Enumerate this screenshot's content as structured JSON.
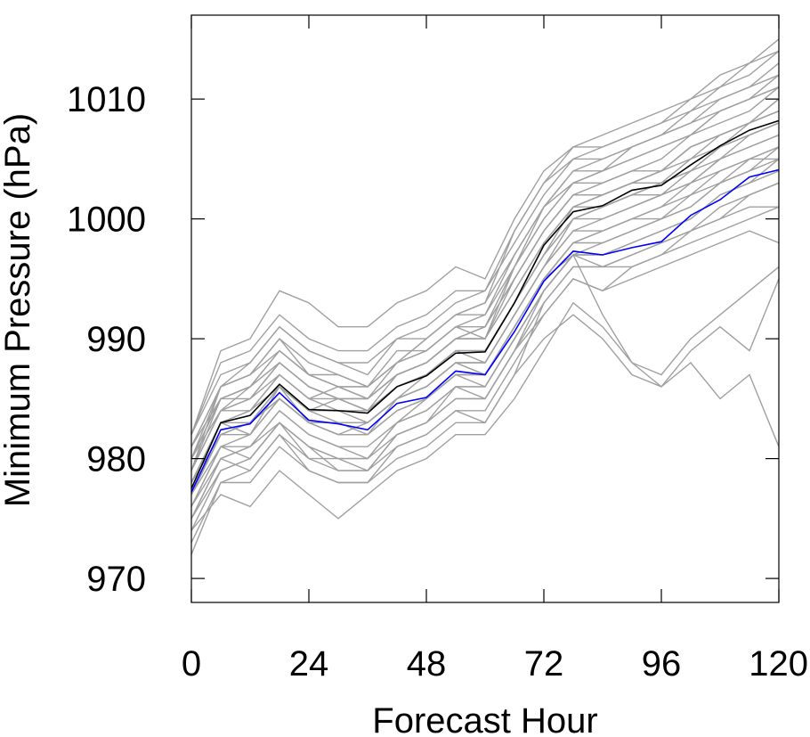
{
  "chart_data": {
    "type": "line",
    "xlabel": "Forecast Hour",
    "ylabel": "Minimum Pressure (hPa)",
    "xlim": [
      0,
      120
    ],
    "ylim": [
      968,
      1017
    ],
    "xticks": [
      0,
      24,
      48,
      72,
      96,
      120
    ],
    "yticks": [
      970,
      980,
      990,
      1000,
      1010
    ],
    "xtick_labels": [
      "0",
      "24",
      "48",
      "72",
      "96",
      "120"
    ],
    "ytick_labels": [
      "970",
      "980",
      "990",
      "1000",
      "1010"
    ],
    "grid": false,
    "legend": "none",
    "x": [
      0,
      6,
      12,
      18,
      24,
      30,
      36,
      42,
      48,
      54,
      60,
      66,
      72,
      78,
      84,
      90,
      96,
      102,
      108,
      114,
      120
    ],
    "series": [
      {
        "role": "ensemble-mean",
        "color": "#000000",
        "values": [
          977.5,
          983.0,
          983.6,
          986.2,
          984.1,
          984.0,
          983.8,
          986.0,
          986.9,
          988.8,
          988.9,
          993.0,
          997.8,
          1000.6,
          1001.1,
          1002.4,
          1002.8,
          1004.5,
          1006.1,
          1007.4,
          1008.2
        ]
      },
      {
        "role": "control",
        "color": "#0000ff",
        "values": [
          977.2,
          982.4,
          982.9,
          985.5,
          983.2,
          982.9,
          982.4,
          984.6,
          985.1,
          987.3,
          987.0,
          990.6,
          994.8,
          997.3,
          997.0,
          997.6,
          998.1,
          1000.3,
          1001.6,
          1003.5,
          1004.1
        ]
      }
    ],
    "member_color": "#a0a0a0",
    "members": [
      [
        981,
        985,
        986,
        988,
        986,
        985,
        985,
        987,
        988,
        990,
        990,
        996,
        1001,
        1003,
        1004,
        1006,
        1007,
        1008,
        1009,
        1010,
        1011
      ],
      [
        975,
        980,
        981,
        983,
        981,
        980,
        980,
        982,
        983,
        986,
        985,
        989,
        993,
        996,
        996,
        997,
        998,
        999,
        1000,
        1001,
        1001
      ],
      [
        979,
        986,
        987,
        990,
        987,
        986,
        986,
        988,
        990,
        992,
        993,
        999,
        1003,
        1005,
        1006,
        1007,
        1008,
        1010,
        1011,
        1013,
        1014
      ],
      [
        973,
        978,
        978,
        981,
        979,
        978,
        978,
        980,
        981,
        983,
        983,
        987,
        990,
        992,
        990,
        987,
        986,
        988,
        985,
        987,
        981
      ],
      [
        978,
        983,
        982,
        986,
        984,
        985,
        984,
        986,
        987,
        989,
        988,
        992,
        996,
        999,
        999,
        1000,
        1001,
        1003,
        1004,
        1005,
        1005
      ],
      [
        982,
        989,
        990,
        994,
        993,
        991,
        991,
        993,
        994,
        996,
        995,
        1000,
        1004,
        1006,
        1007,
        1008,
        1009,
        1010,
        1012,
        1013,
        1015
      ],
      [
        976,
        981,
        980,
        983,
        980,
        979,
        979,
        981,
        982,
        984,
        984,
        988,
        992,
        995,
        994,
        995,
        996,
        997,
        998,
        999,
        998
      ],
      [
        980,
        984,
        985,
        987,
        985,
        986,
        985,
        987,
        988,
        990,
        991,
        995,
        999,
        1002,
        1002,
        1003,
        1004,
        1006,
        1007,
        1008,
        1009
      ],
      [
        977,
        982,
        983,
        985,
        983,
        982,
        983,
        985,
        986,
        988,
        987,
        991,
        995,
        997,
        992,
        988,
        987,
        990,
        992,
        994,
        996
      ],
      [
        974,
        977,
        976,
        979,
        977,
        975,
        977,
        979,
        980,
        982,
        982,
        985,
        989,
        993,
        991,
        988,
        986,
        989,
        991,
        989,
        995
      ],
      [
        979,
        984,
        986,
        988,
        986,
        985,
        984,
        986,
        987,
        989,
        989,
        993,
        997,
        1001,
        1001,
        1002,
        1003,
        1004,
        1006,
        1007,
        1008
      ],
      [
        981,
        986,
        987,
        989,
        987,
        987,
        986,
        989,
        989,
        991,
        992,
        996,
        1000,
        1003,
        1004,
        1005,
        1006,
        1007,
        1009,
        1010,
        1011
      ],
      [
        978,
        982,
        983,
        986,
        983,
        983,
        983,
        985,
        986,
        988,
        988,
        992,
        996,
        1000,
        1000,
        1001,
        1002,
        1003,
        1005,
        1006,
        1007
      ],
      [
        976,
        980,
        979,
        982,
        979,
        978,
        978,
        981,
        982,
        984,
        983,
        987,
        993,
        996,
        996,
        996,
        997,
        999,
        1000,
        1002,
        1003
      ],
      [
        980,
        985,
        986,
        989,
        987,
        986,
        986,
        988,
        989,
        991,
        990,
        995,
        999,
        1002,
        1003,
        1004,
        1004,
        1006,
        1007,
        1008,
        1010
      ],
      [
        978,
        983,
        984,
        986,
        984,
        984,
        983,
        985,
        986,
        988,
        988,
        992,
        996,
        999,
        1000,
        1001,
        1002,
        1003,
        1005,
        1006,
        1007
      ],
      [
        972,
        978,
        979,
        982,
        980,
        980,
        979,
        982,
        983,
        985,
        985,
        989,
        994,
        997,
        997,
        998,
        999,
        1000,
        1002,
        1003,
        1004
      ],
      [
        982,
        987,
        988,
        991,
        989,
        988,
        988,
        990,
        991,
        993,
        994,
        998,
        1002,
        1005,
        1005,
        1006,
        1007,
        1008,
        1010,
        1011,
        1012
      ],
      [
        977,
        981,
        982,
        985,
        983,
        982,
        982,
        984,
        985,
        987,
        987,
        991,
        995,
        998,
        998,
        999,
        1000,
        1001,
        1003,
        1004,
        1006
      ],
      [
        979,
        984,
        984,
        987,
        985,
        985,
        985,
        987,
        988,
        990,
        990,
        994,
        998,
        1001,
        1002,
        1003,
        1004,
        1005,
        1007,
        1008,
        1009
      ],
      [
        980,
        986,
        987,
        990,
        988,
        987,
        986,
        988,
        990,
        992,
        992,
        997,
        1001,
        1004,
        1004,
        1005,
        1006,
        1007,
        1009,
        1010,
        1012
      ],
      [
        975,
        979,
        980,
        983,
        981,
        979,
        979,
        982,
        983,
        985,
        985,
        989,
        992,
        995,
        994,
        996,
        997,
        998,
        999,
        1000,
        1001
      ],
      [
        978,
        983,
        983,
        986,
        984,
        983,
        983,
        985,
        987,
        989,
        989,
        993,
        997,
        1000,
        1001,
        1002,
        1003,
        1004,
        1006,
        1007,
        1008
      ],
      [
        981,
        986,
        988,
        991,
        989,
        988,
        987,
        990,
        990,
        992,
        993,
        997,
        1001,
        1004,
        1005,
        1006,
        1007,
        1009,
        1010,
        1011,
        1013
      ],
      [
        977,
        982,
        983,
        985,
        983,
        982,
        982,
        984,
        985,
        987,
        986,
        990,
        994,
        997,
        996,
        997,
        998,
        999,
        1001,
        1002,
        1003
      ],
      [
        979,
        985,
        985,
        988,
        986,
        985,
        985,
        987,
        988,
        990,
        991,
        995,
        999,
        1002,
        1002,
        1003,
        1004,
        1006,
        1007,
        1008,
        1010
      ],
      [
        976,
        981,
        981,
        984,
        982,
        981,
        980,
        983,
        984,
        986,
        986,
        990,
        994,
        997,
        997,
        998,
        999,
        1000,
        1002,
        1003,
        1005
      ],
      [
        980,
        985,
        986,
        989,
        987,
        986,
        985,
        988,
        989,
        991,
        991,
        996,
        1000,
        1003,
        1003,
        1004,
        1005,
        1007,
        1008,
        1009,
        1011
      ],
      [
        978,
        983,
        984,
        987,
        985,
        984,
        984,
        986,
        987,
        989,
        989,
        993,
        997,
        1000,
        1001,
        1002,
        1002,
        1004,
        1005,
        1007,
        1008
      ],
      [
        974,
        979,
        980,
        983,
        981,
        980,
        980,
        983,
        984,
        986,
        986,
        990,
        994,
        997,
        998,
        999,
        1000,
        1001,
        1003,
        1004,
        1005
      ],
      [
        982,
        988,
        989,
        992,
        990,
        989,
        989,
        991,
        992,
        994,
        994,
        999,
        1003,
        1006,
        1006,
        1007,
        1008,
        1009,
        1011,
        1012,
        1014
      ],
      [
        977,
        982,
        982,
        985,
        983,
        983,
        982,
        985,
        986,
        988,
        987,
        991,
        995,
        998,
        999,
        1000,
        1000,
        1002,
        1003,
        1005,
        1006
      ],
      [
        979,
        984,
        985,
        988,
        986,
        985,
        984,
        987,
        988,
        990,
        990,
        994,
        998,
        1001,
        1002,
        1003,
        1003,
        1005,
        1006,
        1008,
        1009
      ],
      [
        975,
        980,
        981,
        984,
        982,
        981,
        981,
        983,
        985,
        987,
        987,
        991,
        995,
        998,
        999,
        1000,
        1001,
        1002,
        1004,
        1005,
        1006
      ]
    ]
  }
}
